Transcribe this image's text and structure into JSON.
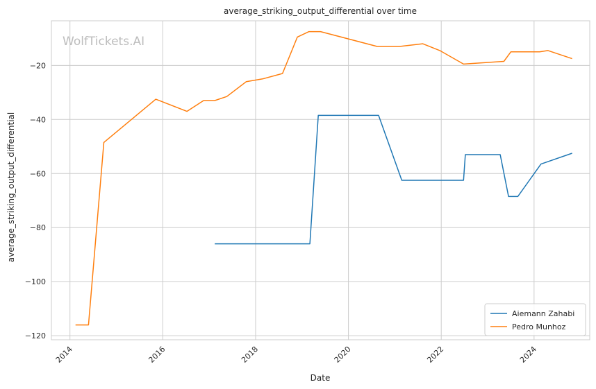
{
  "chart_data": {
    "type": "line",
    "title": "average_striking_output_differential over time",
    "xlabel": "Date",
    "ylabel": "average_striking_output_differential",
    "watermark": "WolfTickets.AI",
    "xlim": [
      2013.6,
      2025.2
    ],
    "ylim": [
      -121.5,
      -3.5
    ],
    "xticks": [
      2014,
      2016,
      2018,
      2020,
      2022,
      2024
    ],
    "xtick_labels": [
      "2014",
      "2016",
      "2018",
      "2020",
      "2022",
      "2024"
    ],
    "yticks": [
      -120,
      -100,
      -80,
      -60,
      -40,
      -20
    ],
    "ytick_labels": [
      "−120",
      "−100",
      "−80",
      "−60",
      "−40",
      "−20"
    ],
    "grid": true,
    "legend_position": "lower-right",
    "series": [
      {
        "name": "Aiemann Zahabi",
        "color": "#1f77b4",
        "points": [
          [
            2017.12,
            -86
          ],
          [
            2019.17,
            -86
          ],
          [
            2019.35,
            -38.5
          ],
          [
            2020.65,
            -38.5
          ],
          [
            2021.15,
            -62.5
          ],
          [
            2022.48,
            -62.5
          ],
          [
            2022.52,
            -53
          ],
          [
            2023.27,
            -53
          ],
          [
            2023.45,
            -68.5
          ],
          [
            2023.65,
            -68.5
          ],
          [
            2024.15,
            -56.5
          ],
          [
            2024.82,
            -52.5
          ]
        ]
      },
      {
        "name": "Pedro Munhoz",
        "color": "#ff7f0e",
        "points": [
          [
            2014.12,
            -116
          ],
          [
            2014.4,
            -116
          ],
          [
            2014.73,
            -48.5
          ],
          [
            2015.85,
            -32.5
          ],
          [
            2016.52,
            -37
          ],
          [
            2016.88,
            -33
          ],
          [
            2017.12,
            -33
          ],
          [
            2017.38,
            -31.5
          ],
          [
            2017.8,
            -26
          ],
          [
            2018.15,
            -25
          ],
          [
            2018.58,
            -23
          ],
          [
            2018.9,
            -9.5
          ],
          [
            2019.15,
            -7.5
          ],
          [
            2019.4,
            -7.5
          ],
          [
            2020.62,
            -13
          ],
          [
            2021.1,
            -13
          ],
          [
            2021.6,
            -12
          ],
          [
            2021.97,
            -14.5
          ],
          [
            2022.48,
            -19.5
          ],
          [
            2023.35,
            -18.5
          ],
          [
            2023.5,
            -15
          ],
          [
            2024.12,
            -15
          ],
          [
            2024.3,
            -14.5
          ],
          [
            2024.82,
            -17.5
          ]
        ]
      }
    ]
  }
}
